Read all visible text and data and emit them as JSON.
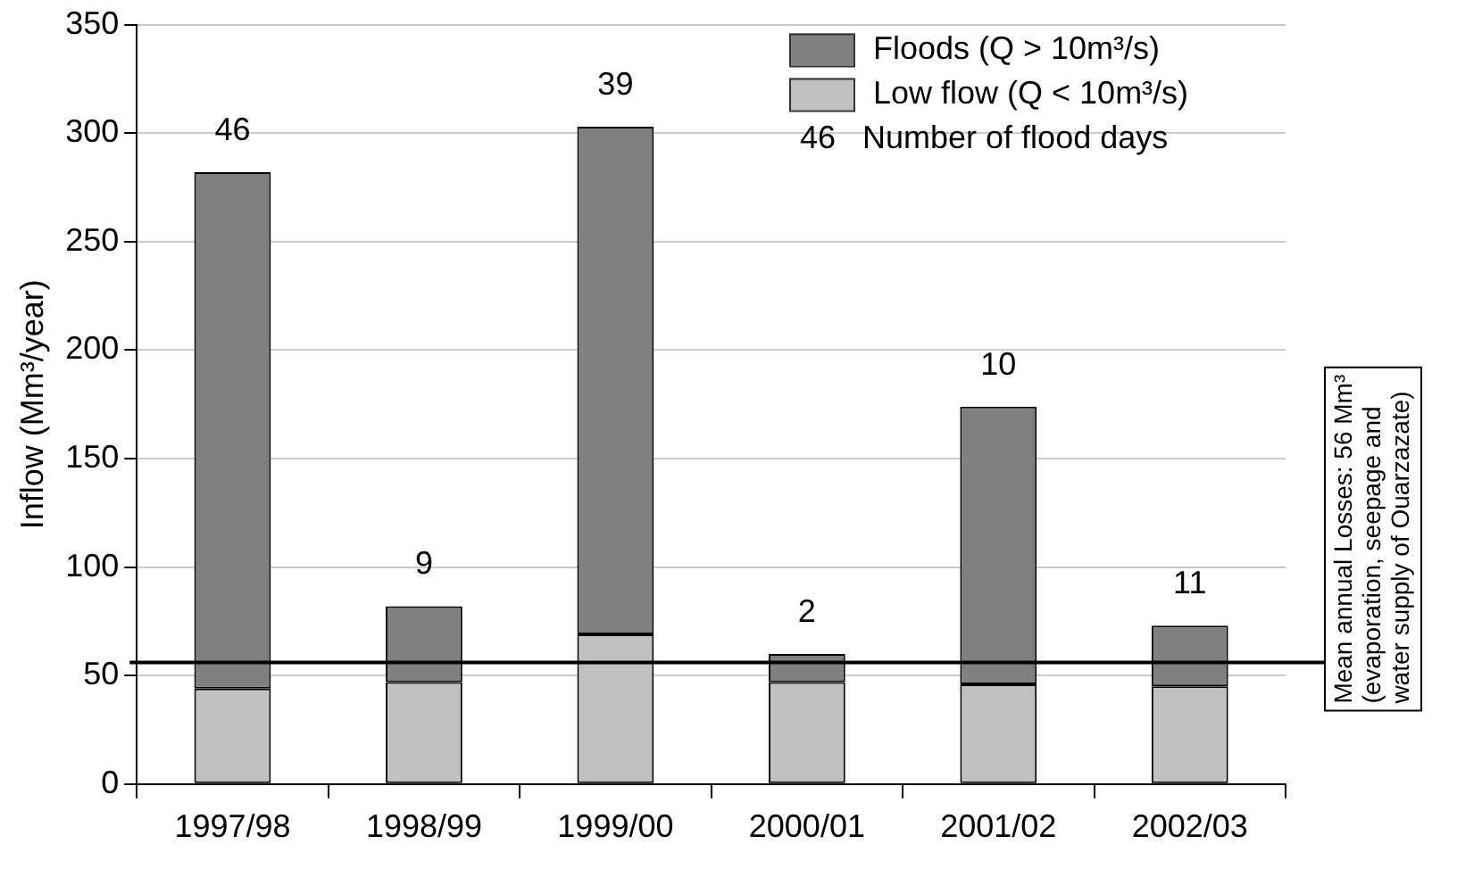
{
  "chart_data": {
    "type": "bar",
    "stacked": true,
    "ylabel": "Inflow (Mm³/year)",
    "categories": [
      "1997/98",
      "1998/99",
      "1999/00",
      "2000/01",
      "2001/02",
      "2002/03"
    ],
    "series": [
      {
        "name": "Low flow (Q < 10m³/s)",
        "color": "#c0c0c0",
        "values": [
          44,
          47,
          69,
          47,
          46,
          45
        ]
      },
      {
        "name": "Floods (Q > 10m³/s)",
        "color": "#808080",
        "values": [
          238,
          35,
          234,
          13,
          128,
          28
        ]
      }
    ],
    "ylim": [
      0,
      350
    ],
    "yticks": [
      0,
      50,
      100,
      150,
      200,
      250,
      300,
      350
    ],
    "grid": "y",
    "legend": "top right",
    "ref_lines": [
      {
        "axis": "y",
        "value": 56,
        "label": "Mean annual Losses: 56 Mm³ (evaporation, seepage and water supply of Ouarzazate)",
        "color": "#000000"
      }
    ],
    "annotations": [
      "46   Number of flood days",
      {
        "text": "46",
        "x": "1997/98",
        "y": 282
      },
      {
        "text": "9",
        "x": "1998/99",
        "y": 82
      },
      {
        "text": "39",
        "x": "1999/00",
        "y": 303
      },
      {
        "text": "2",
        "x": "2000/01",
        "y": 60
      },
      {
        "text": "10",
        "x": "2001/02",
        "y": 174
      },
      {
        "text": "11",
        "x": "2002/03",
        "y": 73
      }
    ]
  }
}
